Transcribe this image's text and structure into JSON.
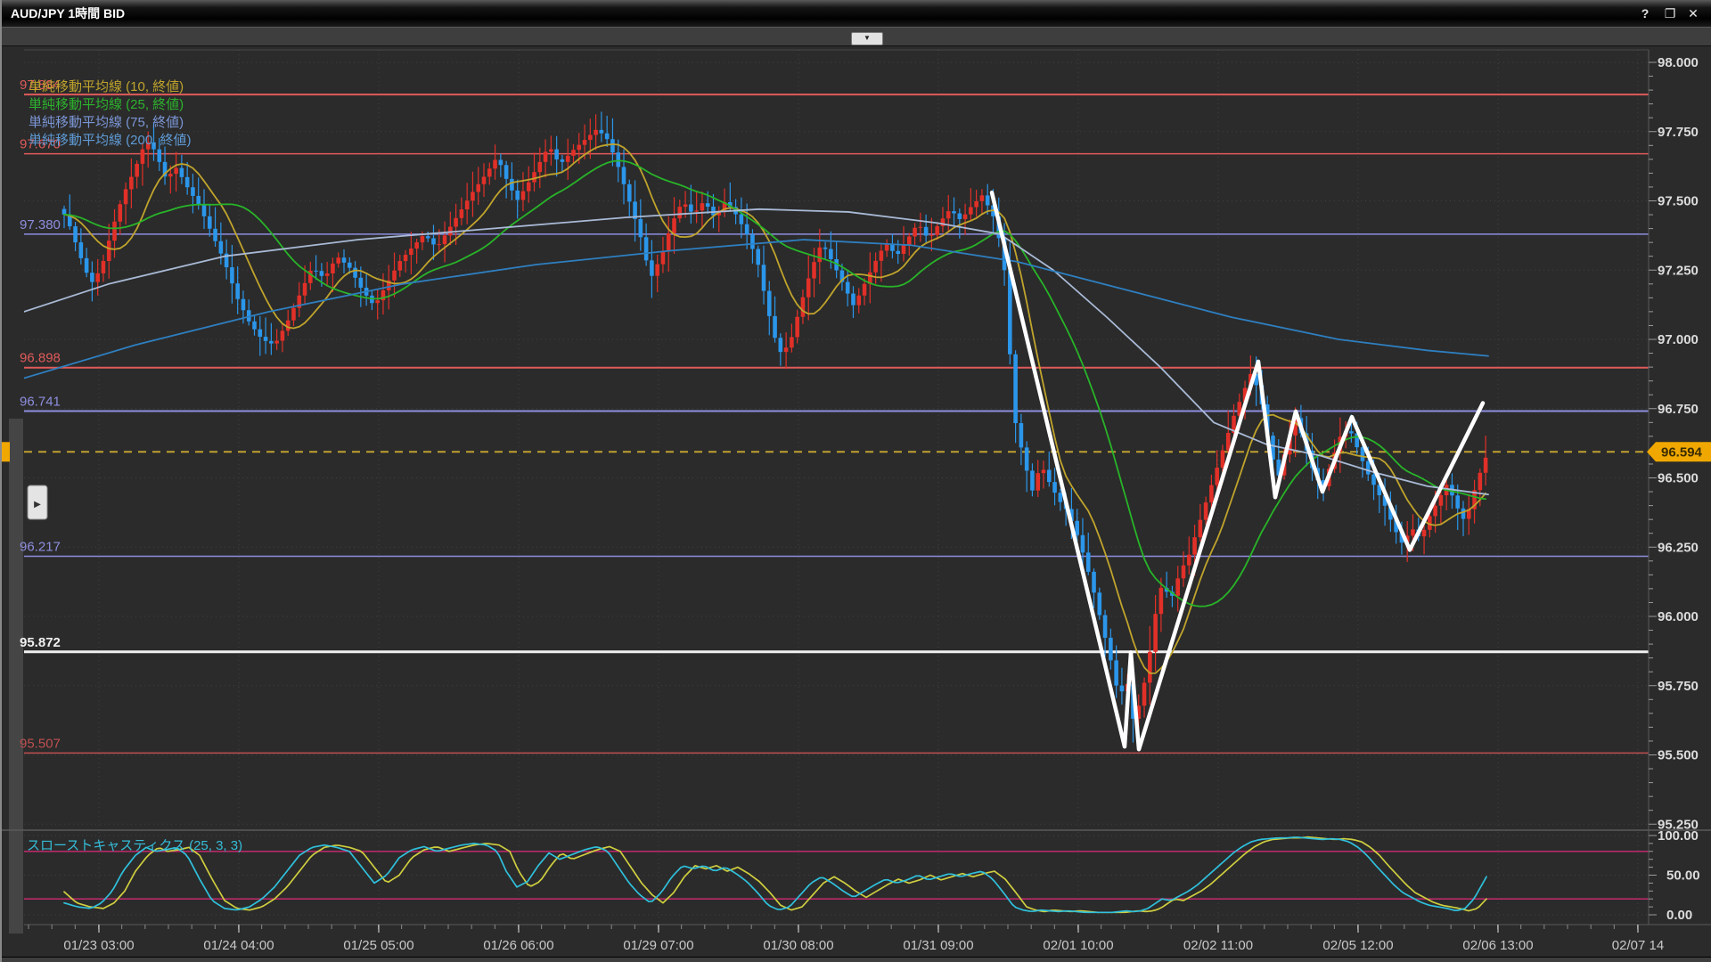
{
  "window": {
    "title": "AUD/JPY 1時間 BID",
    "help_label": "?",
    "maximize_label": "❐",
    "close_label": "✕"
  },
  "toolbar": {
    "collapse_label": "▼"
  },
  "legend": {
    "items": [
      {
        "label": "単純移動平均線 (10, 終値)",
        "color": "#c0a42c"
      },
      {
        "label": "単純移動平均線 (25, 終値)",
        "color": "#2db42d"
      },
      {
        "label": "単純移動平均線 (75, 終値)",
        "color": "#7b96d6"
      },
      {
        "label": "単純移動平均線 (200, 終値)",
        "color": "#5f9bd6"
      }
    ]
  },
  "price_pane": {
    "axis_labels": [
      {
        "text": "98.000",
        "price": 98.0
      },
      {
        "text": "97.750",
        "price": 97.75
      },
      {
        "text": "97.500",
        "price": 97.5
      },
      {
        "text": "97.250",
        "price": 97.25
      },
      {
        "text": "97.000",
        "price": 97.0
      },
      {
        "text": "96.750",
        "price": 96.75
      },
      {
        "text": "96.500",
        "price": 96.5
      },
      {
        "text": "96.250",
        "price": 96.25
      },
      {
        "text": "96.000",
        "price": 96.0
      },
      {
        "text": "95.750",
        "price": 95.75
      },
      {
        "text": "95.500",
        "price": 95.5
      },
      {
        "text": "95.250",
        "price": 95.25
      }
    ],
    "current_price": {
      "text": "96.594",
      "value": 96.594,
      "badge_color": "#f0a800",
      "badge_text_color": "#3a2c00",
      "line_color": "#c0a030"
    },
    "hlines": [
      {
        "price": 97.884,
        "label": "97.884",
        "color": "#e05a5a",
        "width": 2
      },
      {
        "price": 97.67,
        "label": "97.670",
        "color": "#e05a5a",
        "width": 1.5
      },
      {
        "price": 97.38,
        "label": "97.380",
        "color": "#8e8ee0",
        "width": 1.5
      },
      {
        "price": 96.898,
        "label": "96.898",
        "color": "#e05a5a",
        "width": 2
      },
      {
        "price": 96.741,
        "label": "96.741",
        "color": "#8e8ee0",
        "width": 2
      },
      {
        "price": 96.217,
        "label": "96.217",
        "color": "#8e8ee0",
        "width": 1.5
      },
      {
        "price": 95.872,
        "label": "95.872",
        "color": "#f0f0f0",
        "width": 3
      },
      {
        "price": 95.507,
        "label": "95.507",
        "color": "#c05050",
        "width": 1.5
      }
    ]
  },
  "stoch_pane": {
    "label": "スローストキャスティクス (25, 3, 3)",
    "label_color": "#35bcd8",
    "axis_labels": [
      {
        "text": "100.00",
        "value": 100
      },
      {
        "text": "50.00",
        "value": 50
      },
      {
        "text": "0.00",
        "value": 0
      }
    ],
    "level_lines": [
      {
        "value": 80,
        "color": "#b62a68"
      },
      {
        "value": 20,
        "color": "#b62a68"
      }
    ],
    "k_color": "#2fc0dc",
    "d_color": "#cfce3f"
  },
  "x_axis": {
    "labels": [
      "01/23 03:00",
      "01/24 04:00",
      "01/25 05:00",
      "01/26 06:00",
      "01/29 07:00",
      "01/30 08:00",
      "01/31 09:00",
      "02/01 10:00",
      "02/02 11:00",
      "02/05 12:00",
      "02/06 13:00",
      "02/07 14"
    ]
  },
  "chart_data": {
    "type": "candlestick",
    "pair": "AUD/JPY",
    "timeframe": "1時間",
    "price_type": "BID",
    "last_price": 96.594,
    "up_color": "#e13028",
    "down_color": "#2b96ea",
    "close_waypoints": [
      [
        25,
        97.58
      ],
      [
        38,
        97.68
      ],
      [
        50,
        97.6
      ],
      [
        62,
        97.5
      ],
      [
        75,
        97.42
      ],
      [
        88,
        97.3
      ],
      [
        100,
        97.2
      ],
      [
        112,
        97.26
      ],
      [
        124,
        97.4
      ],
      [
        136,
        97.52
      ],
      [
        150,
        97.62
      ],
      [
        162,
        97.72
      ],
      [
        172,
        97.68
      ],
      [
        184,
        97.58
      ],
      [
        196,
        97.62
      ],
      [
        208,
        97.55
      ],
      [
        222,
        97.48
      ],
      [
        236,
        97.38
      ],
      [
        250,
        97.28
      ],
      [
        264,
        97.15
      ],
      [
        278,
        97.06
      ],
      [
        292,
        97.0
      ],
      [
        306,
        96.98
      ],
      [
        320,
        97.06
      ],
      [
        334,
        97.16
      ],
      [
        348,
        97.26
      ],
      [
        362,
        97.22
      ],
      [
        376,
        97.3
      ],
      [
        390,
        97.26
      ],
      [
        404,
        97.18
      ],
      [
        418,
        97.12
      ],
      [
        432,
        97.2
      ],
      [
        446,
        97.28
      ],
      [
        460,
        97.33
      ],
      [
        474,
        97.38
      ],
      [
        488,
        97.33
      ],
      [
        502,
        97.4
      ],
      [
        516,
        97.47
      ],
      [
        530,
        97.54
      ],
      [
        544,
        97.6
      ],
      [
        556,
        97.66
      ],
      [
        566,
        97.58
      ],
      [
        578,
        97.5
      ],
      [
        590,
        97.56
      ],
      [
        602,
        97.63
      ],
      [
        614,
        97.7
      ],
      [
        626,
        97.63
      ],
      [
        640,
        97.68
      ],
      [
        654,
        97.72
      ],
      [
        668,
        97.76
      ],
      [
        680,
        97.72
      ],
      [
        692,
        97.62
      ],
      [
        704,
        97.5
      ],
      [
        716,
        97.38
      ],
      [
        728,
        97.22
      ],
      [
        740,
        97.3
      ],
      [
        752,
        97.42
      ],
      [
        764,
        97.5
      ],
      [
        776,
        97.45
      ],
      [
        788,
        97.5
      ],
      [
        800,
        97.44
      ],
      [
        812,
        97.5
      ],
      [
        824,
        97.45
      ],
      [
        836,
        97.38
      ],
      [
        848,
        97.28
      ],
      [
        860,
        97.1
      ],
      [
        872,
        96.95
      ],
      [
        884,
        96.98
      ],
      [
        896,
        97.12
      ],
      [
        908,
        97.25
      ],
      [
        920,
        97.35
      ],
      [
        932,
        97.28
      ],
      [
        944,
        97.2
      ],
      [
        956,
        97.12
      ],
      [
        968,
        97.2
      ],
      [
        980,
        97.28
      ],
      [
        992,
        97.35
      ],
      [
        1004,
        97.3
      ],
      [
        1016,
        97.36
      ],
      [
        1028,
        97.42
      ],
      [
        1040,
        97.36
      ],
      [
        1052,
        97.42
      ],
      [
        1064,
        97.47
      ],
      [
        1076,
        97.43
      ],
      [
        1088,
        97.48
      ],
      [
        1100,
        97.52
      ],
      [
        1112,
        97.45
      ],
      [
        1124,
        97.3
      ],
      [
        1136,
        96.72
      ],
      [
        1146,
        96.58
      ],
      [
        1156,
        96.45
      ],
      [
        1166,
        96.55
      ],
      [
        1176,
        96.48
      ],
      [
        1186,
        96.42
      ],
      [
        1196,
        96.38
      ],
      [
        1206,
        96.3
      ],
      [
        1216,
        96.2
      ],
      [
        1226,
        96.08
      ],
      [
        1236,
        95.95
      ],
      [
        1246,
        95.82
      ],
      [
        1254,
        95.7
      ],
      [
        1262,
        95.78
      ],
      [
        1270,
        95.62
      ],
      [
        1278,
        95.7
      ],
      [
        1286,
        95.82
      ],
      [
        1294,
        96.0
      ],
      [
        1302,
        96.12
      ],
      [
        1312,
        96.06
      ],
      [
        1322,
        96.16
      ],
      [
        1332,
        96.22
      ],
      [
        1342,
        96.32
      ],
      [
        1352,
        96.42
      ],
      [
        1362,
        96.52
      ],
      [
        1372,
        96.62
      ],
      [
        1382,
        96.72
      ],
      [
        1392,
        96.8
      ],
      [
        1402,
        96.88
      ],
      [
        1412,
        96.8
      ],
      [
        1422,
        96.62
      ],
      [
        1432,
        96.5
      ],
      [
        1442,
        96.62
      ],
      [
        1452,
        96.72
      ],
      [
        1462,
        96.62
      ],
      [
        1472,
        96.52
      ],
      [
        1482,
        96.46
      ],
      [
        1492,
        96.56
      ],
      [
        1502,
        96.65
      ],
      [
        1512,
        96.68
      ],
      [
        1522,
        96.6
      ],
      [
        1532,
        96.52
      ],
      [
        1542,
        96.46
      ],
      [
        1552,
        96.4
      ],
      [
        1562,
        96.32
      ],
      [
        1572,
        96.26
      ],
      [
        1582,
        96.32
      ],
      [
        1592,
        96.28
      ],
      [
        1602,
        96.36
      ],
      [
        1612,
        96.42
      ],
      [
        1622,
        96.48
      ],
      [
        1632,
        96.4
      ],
      [
        1642,
        96.34
      ],
      [
        1652,
        96.45
      ],
      [
        1662,
        96.55
      ],
      [
        1668,
        96.594
      ]
    ],
    "ma": [
      {
        "name": "SMA10",
        "window": 10,
        "color": "#c0a42c",
        "derive": "close"
      },
      {
        "name": "SMA25",
        "window": 25,
        "color": "#28b428",
        "derive": "close"
      },
      {
        "name": "SMA75",
        "color": "#a9bad6",
        "points": [
          [
            25,
            97.1
          ],
          [
            120,
            97.2
          ],
          [
            250,
            97.3
          ],
          [
            400,
            97.36
          ],
          [
            550,
            97.4
          ],
          [
            700,
            97.44
          ],
          [
            850,
            97.47
          ],
          [
            950,
            97.46
          ],
          [
            1050,
            97.42
          ],
          [
            1120,
            97.38
          ],
          [
            1180,
            97.25
          ],
          [
            1240,
            97.08
          ],
          [
            1300,
            96.9
          ],
          [
            1360,
            96.7
          ],
          [
            1420,
            96.62
          ],
          [
            1480,
            96.58
          ],
          [
            1540,
            96.52
          ],
          [
            1600,
            96.47
          ],
          [
            1668,
            96.44
          ]
        ]
      },
      {
        "name": "SMA200",
        "color": "#2e7fc0",
        "points": [
          [
            25,
            96.86
          ],
          [
            150,
            96.98
          ],
          [
            300,
            97.1
          ],
          [
            450,
            97.2
          ],
          [
            600,
            97.27
          ],
          [
            750,
            97.32
          ],
          [
            900,
            97.36
          ],
          [
            1020,
            97.34
          ],
          [
            1140,
            97.28
          ],
          [
            1260,
            97.18
          ],
          [
            1380,
            97.08
          ],
          [
            1500,
            97.0
          ],
          [
            1600,
            96.96
          ],
          [
            1668,
            96.94
          ]
        ]
      }
    ],
    "white_trend_line": {
      "color": "#ffffff",
      "points": [
        [
          1111,
          97.53
        ],
        [
          1260,
          95.53
        ],
        [
          1267,
          95.87
        ],
        [
          1276,
          95.52
        ],
        [
          1410,
          96.92
        ],
        [
          1429,
          96.43
        ],
        [
          1452,
          96.74
        ],
        [
          1482,
          96.45
        ],
        [
          1515,
          96.72
        ],
        [
          1580,
          96.24
        ],
        [
          1662,
          96.77
        ]
      ]
    },
    "stochastic_k_waypoints": [
      [
        25,
        40
      ],
      [
        40,
        48
      ],
      [
        55,
        30
      ],
      [
        70,
        15
      ],
      [
        85,
        10
      ],
      [
        100,
        8
      ],
      [
        112,
        15
      ],
      [
        124,
        30
      ],
      [
        136,
        55
      ],
      [
        150,
        75
      ],
      [
        162,
        85
      ],
      [
        172,
        80
      ],
      [
        184,
        82
      ],
      [
        196,
        85
      ],
      [
        208,
        75
      ],
      [
        222,
        45
      ],
      [
        236,
        18
      ],
      [
        250,
        8
      ],
      [
        264,
        6
      ],
      [
        278,
        10
      ],
      [
        292,
        20
      ],
      [
        306,
        35
      ],
      [
        320,
        55
      ],
      [
        334,
        75
      ],
      [
        348,
        85
      ],
      [
        362,
        88
      ],
      [
        376,
        85
      ],
      [
        390,
        80
      ],
      [
        404,
        60
      ],
      [
        418,
        40
      ],
      [
        432,
        50
      ],
      [
        446,
        72
      ],
      [
        460,
        82
      ],
      [
        474,
        86
      ],
      [
        488,
        80
      ],
      [
        502,
        84
      ],
      [
        516,
        88
      ],
      [
        530,
        90
      ],
      [
        544,
        88
      ],
      [
        556,
        80
      ],
      [
        566,
        55
      ],
      [
        578,
        35
      ],
      [
        590,
        42
      ],
      [
        602,
        62
      ],
      [
        614,
        78
      ],
      [
        626,
        70
      ],
      [
        640,
        76
      ],
      [
        654,
        82
      ],
      [
        668,
        86
      ],
      [
        680,
        80
      ],
      [
        692,
        60
      ],
      [
        704,
        40
      ],
      [
        716,
        25
      ],
      [
        728,
        15
      ],
      [
        740,
        28
      ],
      [
        752,
        48
      ],
      [
        764,
        62
      ],
      [
        776,
        58
      ],
      [
        788,
        62
      ],
      [
        800,
        55
      ],
      [
        812,
        60
      ],
      [
        824,
        52
      ],
      [
        836,
        42
      ],
      [
        848,
        28
      ],
      [
        860,
        12
      ],
      [
        872,
        6
      ],
      [
        884,
        10
      ],
      [
        896,
        25
      ],
      [
        908,
        40
      ],
      [
        920,
        48
      ],
      [
        932,
        40
      ],
      [
        944,
        30
      ],
      [
        956,
        22
      ],
      [
        968,
        30
      ],
      [
        980,
        38
      ],
      [
        992,
        45
      ],
      [
        1004,
        40
      ],
      [
        1016,
        44
      ],
      [
        1028,
        50
      ],
      [
        1040,
        44
      ],
      [
        1052,
        48
      ],
      [
        1064,
        52
      ],
      [
        1076,
        48
      ],
      [
        1088,
        52
      ],
      [
        1100,
        55
      ],
      [
        1112,
        45
      ],
      [
        1124,
        28
      ],
      [
        1136,
        10
      ],
      [
        1146,
        6
      ],
      [
        1156,
        4
      ],
      [
        1166,
        6
      ],
      [
        1176,
        5
      ],
      [
        1186,
        4
      ],
      [
        1196,
        5
      ],
      [
        1206,
        4
      ],
      [
        1216,
        3
      ],
      [
        1226,
        3
      ],
      [
        1236,
        3
      ],
      [
        1246,
        3
      ],
      [
        1254,
        4
      ],
      [
        1262,
        5
      ],
      [
        1270,
        4
      ],
      [
        1278,
        5
      ],
      [
        1286,
        8
      ],
      [
        1294,
        14
      ],
      [
        1302,
        20
      ],
      [
        1312,
        18
      ],
      [
        1322,
        24
      ],
      [
        1332,
        30
      ],
      [
        1342,
        38
      ],
      [
        1352,
        48
      ],
      [
        1362,
        58
      ],
      [
        1372,
        68
      ],
      [
        1382,
        78
      ],
      [
        1392,
        86
      ],
      [
        1402,
        92
      ],
      [
        1412,
        95
      ],
      [
        1422,
        96
      ],
      [
        1432,
        97
      ],
      [
        1442,
        97
      ],
      [
        1452,
        98
      ],
      [
        1462,
        97
      ],
      [
        1472,
        96
      ],
      [
        1482,
        95
      ],
      [
        1492,
        96
      ],
      [
        1502,
        95
      ],
      [
        1512,
        92
      ],
      [
        1522,
        85
      ],
      [
        1532,
        75
      ],
      [
        1542,
        62
      ],
      [
        1552,
        50
      ],
      [
        1562,
        38
      ],
      [
        1572,
        28
      ],
      [
        1582,
        22
      ],
      [
        1592,
        16
      ],
      [
        1602,
        12
      ],
      [
        1612,
        10
      ],
      [
        1622,
        8
      ],
      [
        1632,
        5
      ],
      [
        1642,
        8
      ],
      [
        1652,
        20
      ],
      [
        1662,
        40
      ],
      [
        1668,
        52
      ]
    ]
  }
}
